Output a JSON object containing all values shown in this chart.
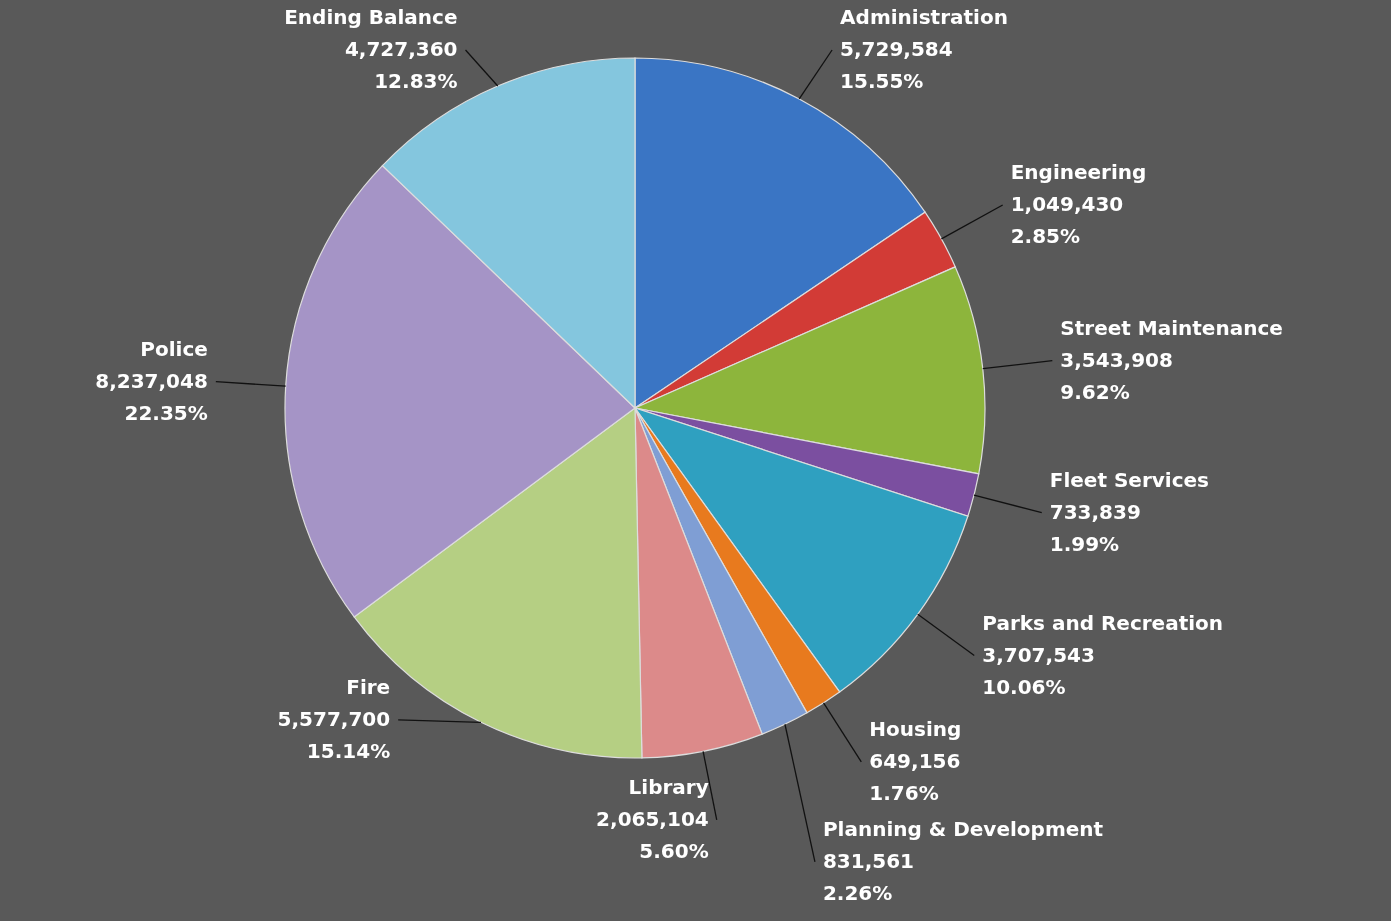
{
  "chart_data": {
    "type": "pie",
    "categories": [
      "Administration",
      "Engineering",
      "Street Maintenance",
      "Fleet Services",
      "Parks and Recreation",
      "Housing",
      "Planning & Development",
      "Library",
      "Fire",
      "Police",
      "Ending Balance"
    ],
    "values": [
      5729584,
      1049430,
      3543908,
      733839,
      3707543,
      649156,
      831561,
      2065104,
      5577700,
      8237048,
      4727360
    ],
    "value_labels": [
      "5,729,584\n15.55%",
      "1,049,430\n2.85%",
      "3,543,908\n9.62%",
      "733,839\n1.99%",
      "3,707,543\n10.06%",
      "649,156\n1.76%",
      "831,561\n2.26%",
      "2,065,104\n5.60%",
      "5,577,700\n15.14%",
      "8,237,048\n22.35%",
      "4,727,360\n12.83%"
    ],
    "colors": [
      "#3a75c4",
      "#d23b36",
      "#8db53c",
      "#7b4fa0",
      "#2fa0c0",
      "#e87a1e",
      "#7f9ed4",
      "#dc8a8a",
      "#b5cf83",
      "#a594c6",
      "#84c6de"
    ]
  }
}
